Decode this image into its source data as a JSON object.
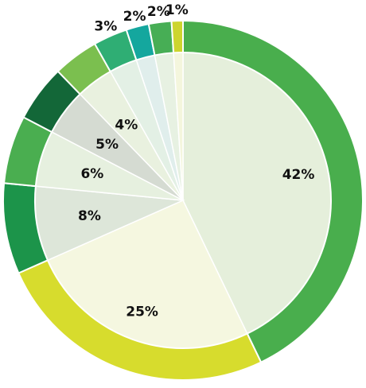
{
  "chart_data": {
    "type": "pie",
    "values": [
      42,
      25,
      8,
      6,
      5,
      4,
      3,
      2,
      2,
      1
    ],
    "labels": [
      "42%",
      "25%",
      "8%",
      "6%",
      "5%",
      "4%",
      "3%",
      "2%",
      "2%",
      "1%"
    ],
    "outer_colors": [
      "#49ae4d",
      "#d7dc2d",
      "#1c944a",
      "#4aae50",
      "#136738",
      "#7bbf4f",
      "#2fae74",
      "#14a79e",
      "#47ae55",
      "#cdd52e"
    ],
    "inner_colors": [
      "#e5efdb",
      "#f5f7e0",
      "#dde6d9",
      "#e6f0df",
      "#d5dbd2",
      "#e9f1df",
      "#e3f0e5",
      "#e0eeec",
      "#e7f1e2",
      "#f4f6dd"
    ],
    "label_side": [
      "inside",
      "inside",
      "inside",
      "inside",
      "inside",
      "inside",
      "outside",
      "outside",
      "outside",
      "outside"
    ]
  }
}
